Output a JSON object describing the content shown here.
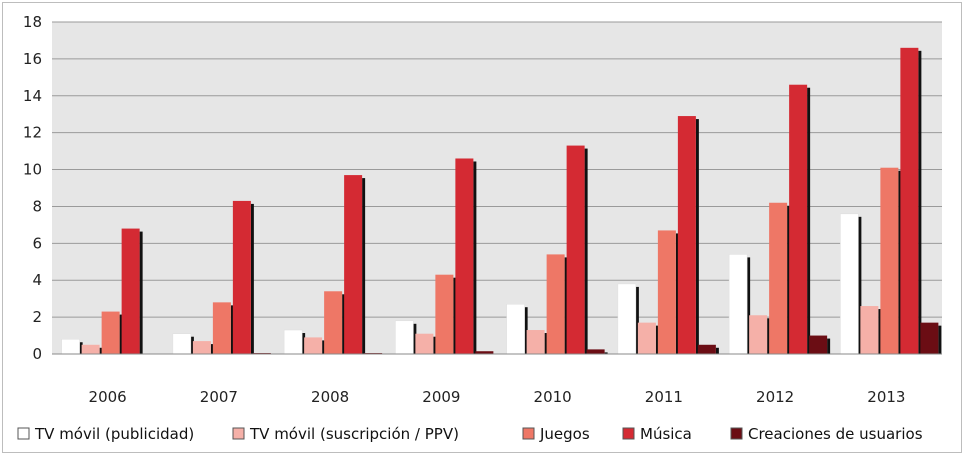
{
  "chart_data": {
    "type": "bar",
    "title": "",
    "xlabel": "",
    "ylabel": "",
    "ylim": [
      0,
      18
    ],
    "yticks": [
      "0",
      "2",
      "4",
      "6",
      "8",
      "10",
      "12",
      "14",
      "16",
      "18"
    ],
    "categories": [
      "2006",
      "2007",
      "2008",
      "2009",
      "2010",
      "2011",
      "2012",
      "2013"
    ],
    "grid": true,
    "legend_position": "bottom",
    "series": [
      {
        "name": "TV móvil (publicidad)",
        "color": "#ffffff",
        "values": [
          0.8,
          1.1,
          1.3,
          1.8,
          2.7,
          3.8,
          5.4,
          7.6
        ]
      },
      {
        "name": "TV móvil (suscripción / PPV)",
        "color": "#f5b0a8",
        "values": [
          0.5,
          0.7,
          0.9,
          1.1,
          1.3,
          1.7,
          2.1,
          2.6
        ]
      },
      {
        "name": "Juegos",
        "color": "#ee7766",
        "values": [
          2.3,
          2.8,
          3.4,
          4.3,
          5.4,
          6.7,
          8.2,
          10.1
        ]
      },
      {
        "name": "Música",
        "color": "#d42a33",
        "values": [
          6.8,
          8.3,
          9.7,
          10.6,
          11.3,
          12.9,
          14.6,
          16.6
        ]
      },
      {
        "name": "Creaciones de usuarios",
        "color": "#6b0d14",
        "values": [
          0.0,
          0.05,
          0.05,
          0.15,
          0.25,
          0.5,
          1.0,
          1.7
        ]
      }
    ]
  }
}
